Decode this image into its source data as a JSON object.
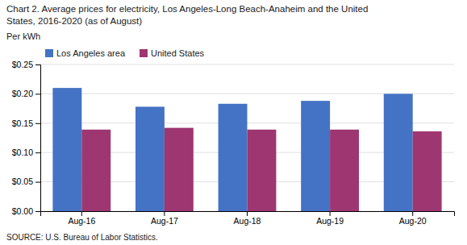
{
  "chart_data": {
    "type": "bar",
    "title": [
      "Chart 2. Average prices for electricity, Los Angeles-Long Beach-Anaheim and the United",
      "States, 2016-2020  (as of August)"
    ],
    "ylabel": "Per kWh",
    "annotations": [
      "SOURCE: U.S. Bureau of Labor Statistics."
    ],
    "categories": [
      "Aug-16",
      "Aug-17",
      "Aug-18",
      "Aug-19",
      "Aug-20"
    ],
    "series": [
      {
        "name": "Los Angeles area",
        "color": "#4472C4",
        "values": [
          0.21,
          0.178,
          0.183,
          0.188,
          0.2
        ]
      },
      {
        "name": "United States",
        "color": "#9E3671",
        "values": [
          0.139,
          0.142,
          0.139,
          0.139,
          0.136
        ]
      }
    ],
    "ylim": [
      0,
      0.25
    ],
    "yticks": [
      {
        "value": 0.0,
        "label": "$0.00"
      },
      {
        "value": 0.05,
        "label": "$0.05"
      },
      {
        "value": 0.1,
        "label": "$0.10"
      },
      {
        "value": 0.15,
        "label": "$0.15"
      },
      {
        "value": 0.2,
        "label": "$0.20"
      },
      {
        "value": 0.25,
        "label": "$0.25"
      }
    ],
    "grid": true,
    "legend": "upper left"
  }
}
